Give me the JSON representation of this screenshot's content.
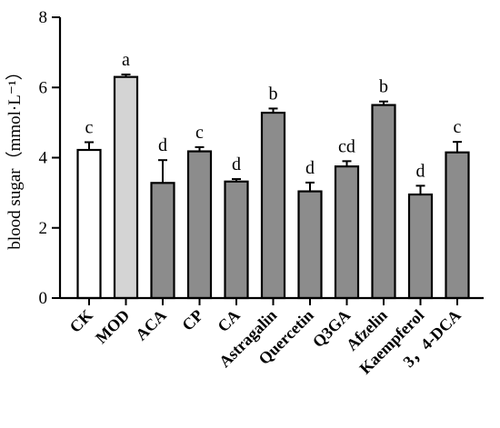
{
  "chart_data": {
    "type": "bar",
    "ylabel": "blood sugar（mmol·L⁻¹）",
    "ylim": [
      0,
      8
    ],
    "yticks": [
      "0",
      "2",
      "4",
      "6",
      "8"
    ],
    "grid": false,
    "categories": [
      "CK",
      "MOD",
      "ACA",
      "CP",
      "CA",
      "Astragalin",
      "Quercetin",
      "Q3GA",
      "Afzelin",
      "Kaempferol",
      "3，4-DCA"
    ],
    "values": [
      4.22,
      6.3,
      3.28,
      4.18,
      3.32,
      5.28,
      3.04,
      3.75,
      5.5,
      2.95,
      4.15
    ],
    "errors": [
      0.22,
      0.07,
      0.65,
      0.12,
      0.07,
      0.12,
      0.25,
      0.15,
      0.1,
      0.25,
      0.3
    ],
    "significance": [
      "c",
      "a",
      "d",
      "c",
      "d",
      "b",
      "d",
      "cd",
      "b",
      "d",
      "c"
    ],
    "bar_colors": [
      "#ffffff",
      "#d4d4d4",
      "#8c8c8c",
      "#8c8c8c",
      "#8c8c8c",
      "#8c8c8c",
      "#8c8c8c",
      "#8c8c8c",
      "#8c8c8c",
      "#8c8c8c",
      "#8c8c8c"
    ]
  }
}
